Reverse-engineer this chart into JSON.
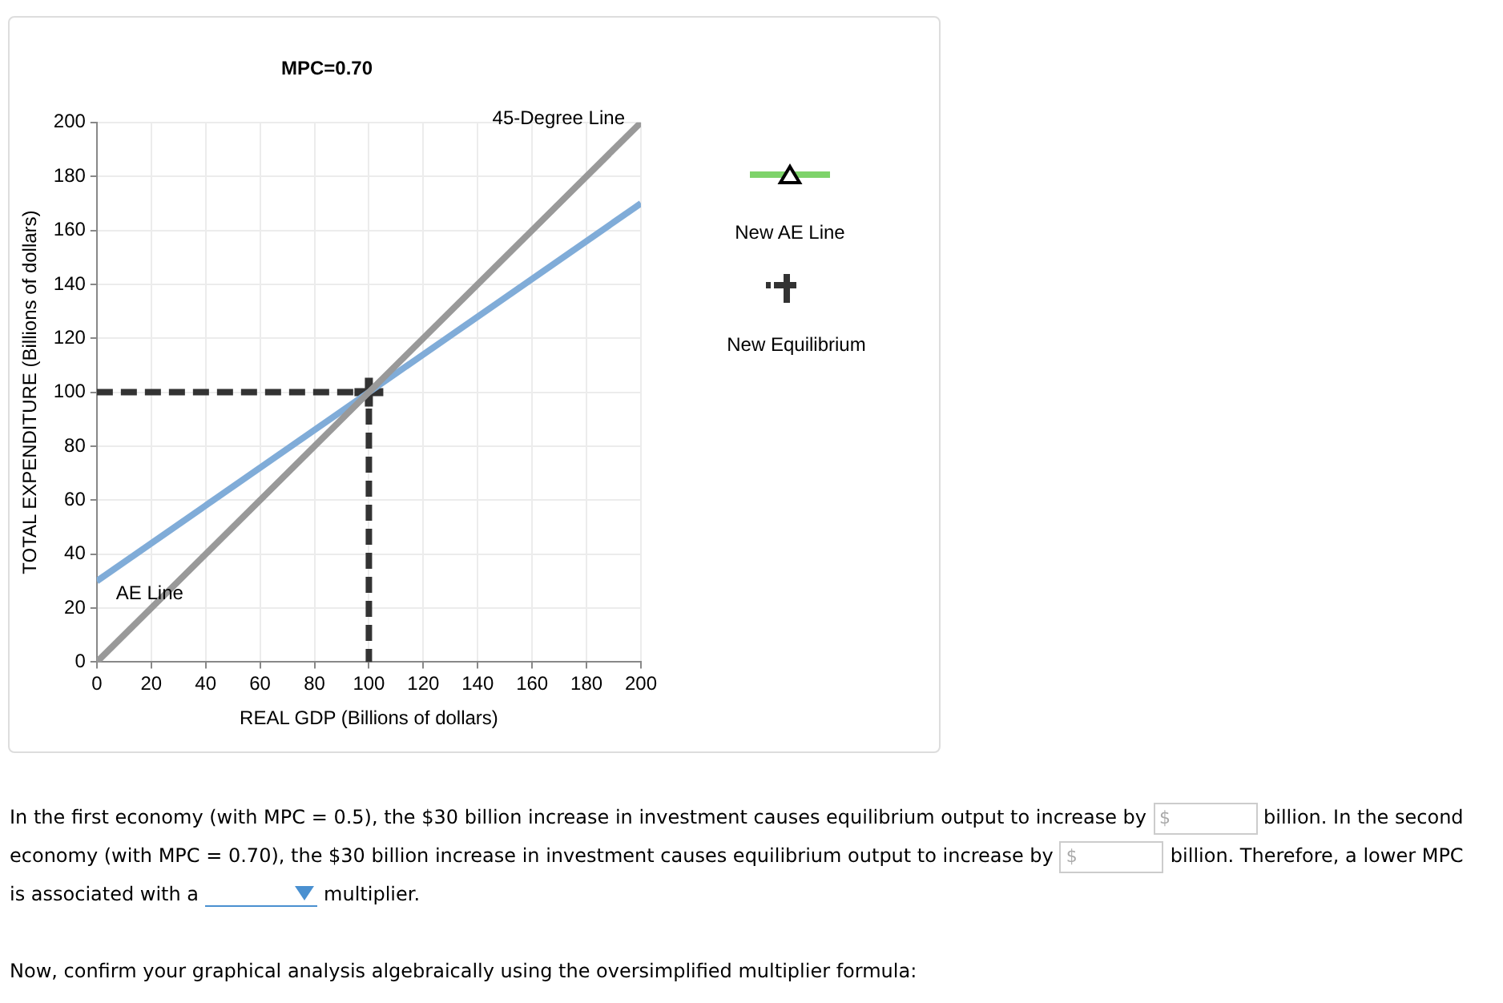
{
  "chart_data": {
    "type": "line",
    "title": "MPC=0.70",
    "xlabel": "REAL GDP (Billions of dollars)",
    "ylabel": "TOTAL EXPENDITURE (Billions of dollars)",
    "xlim": [
      0,
      200
    ],
    "ylim": [
      0,
      200
    ],
    "xticks": [
      0,
      20,
      40,
      60,
      80,
      100,
      120,
      140,
      160,
      180,
      200
    ],
    "yticks": [
      0,
      20,
      40,
      60,
      80,
      100,
      120,
      140,
      160,
      180,
      200
    ],
    "grid": true,
    "legend": false,
    "series": [
      {
        "color": "#999999",
        "x": [
          0,
          200
        ],
        "values": [
          0,
          200
        ],
        "marker": "none",
        "line_style": "solid"
      },
      {
        "color": "#80acd8",
        "x": [
          0,
          200
        ],
        "values": [
          30,
          170
        ],
        "marker": "none",
        "line_style": "solid"
      },
      {
        "color": "#333333",
        "x": [
          0,
          100,
          100
        ],
        "values": [
          100,
          100,
          0
        ],
        "marker": "none",
        "line_style": "dashed"
      },
      {
        "type": "scatter",
        "color": "#333333",
        "x": [
          100
        ],
        "values": [
          100
        ],
        "marker": "cross"
      }
    ],
    "annotations": [
      {
        "text": "45-Degree Line",
        "x": 200,
        "y": 200
      },
      {
        "text": "AE Line",
        "x": 0,
        "y": 30
      },
      "New AE Line",
      "New Equilibrium",
      "In the first economy (with MPC = 0.5), the $30 billion increase in investment causes equilibrium output to increase by",
      "$",
      "billion. In the second economy (with MPC = 0.70), the $30 billion increase in investment causes equilibrium output to increase by",
      "$",
      "billion. Therefore, a lower MPC is associated with a",
      "multiplier.",
      "Now, confirm your graphical analysis algebraically using the oversimplified multiplier formula:"
    ]
  }
}
